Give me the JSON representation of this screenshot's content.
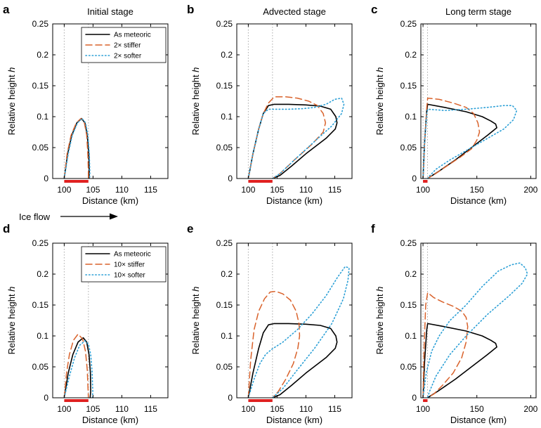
{
  "figure": {
    "flow_label": "Ice flow",
    "colors": {
      "meteoric": "#000000",
      "stiffer": "#d9622b",
      "softer": "#2a9fd6",
      "guide": "#aaaaaa",
      "bar": "#e02020"
    }
  },
  "chart_data": [
    {
      "panel": "a",
      "type": "line",
      "title": "Initial stage",
      "xlabel": "Distance (km)",
      "ylabel": "Relative height h",
      "xlim": [
        98,
        118
      ],
      "ylim": [
        0,
        0.25
      ],
      "xticks": [
        100,
        105,
        110,
        115
      ],
      "yticks": [
        0,
        0.05,
        0.1,
        0.15,
        0.2,
        0.25
      ],
      "guides_x": [
        100,
        104.2
      ],
      "bar_x": [
        100,
        104.2
      ],
      "legend": [
        "As meteoric",
        "2× stiffer",
        "2× softer"
      ],
      "series": [
        {
          "name": "As meteoric",
          "style": "solid",
          "x": [
            100.0,
            100.6,
            101.3,
            102.2,
            103.0,
            103.6,
            104.0,
            104.25,
            104.35,
            104.3
          ],
          "y": [
            0.0,
            0.04,
            0.07,
            0.09,
            0.097,
            0.09,
            0.07,
            0.04,
            0.01,
            0.0
          ]
        },
        {
          "name": "2× stiffer",
          "style": "dashed",
          "x": [
            100.0,
            100.5,
            101.2,
            102.1,
            102.9,
            103.5,
            103.9,
            104.1,
            104.2,
            104.2
          ],
          "y": [
            0.0,
            0.04,
            0.07,
            0.09,
            0.097,
            0.09,
            0.07,
            0.04,
            0.01,
            0.0
          ]
        },
        {
          "name": "2× softer",
          "style": "dotted",
          "x": [
            100.0,
            100.7,
            101.4,
            102.3,
            103.1,
            103.7,
            104.1,
            104.35,
            104.45,
            104.4
          ],
          "y": [
            0.0,
            0.04,
            0.07,
            0.09,
            0.097,
            0.09,
            0.07,
            0.04,
            0.01,
            0.0
          ]
        }
      ]
    },
    {
      "panel": "b",
      "type": "line",
      "title": "Advected stage",
      "xlabel": "Distance (km)",
      "ylabel": "Relative height h",
      "xlim": [
        98,
        118
      ],
      "ylim": [
        0,
        0.25
      ],
      "xticks": [
        100,
        105,
        110,
        115
      ],
      "yticks": [
        0,
        0.05,
        0.1,
        0.15,
        0.2,
        0.25
      ],
      "guides_x": [
        100,
        104.2
      ],
      "bar_x": [
        100,
        104.2
      ],
      "series": [
        {
          "name": "As meteoric",
          "style": "solid",
          "x": [
            100.0,
            100.8,
            101.8,
            102.6,
            103.5,
            104.5,
            107.0,
            110.0,
            112.5,
            114.3,
            115.2,
            115.4,
            115.1,
            113.5,
            110.0,
            107.5,
            105.5,
            104.2
          ],
          "y": [
            0.0,
            0.04,
            0.08,
            0.105,
            0.118,
            0.12,
            0.12,
            0.119,
            0.117,
            0.112,
            0.1,
            0.09,
            0.08,
            0.065,
            0.04,
            0.02,
            0.005,
            0.0
          ]
        },
        {
          "name": "2× stiffer",
          "style": "dashed",
          "x": [
            100.0,
            100.8,
            101.8,
            102.6,
            103.5,
            104.5,
            106.5,
            108.5,
            110.5,
            112.0,
            113.0,
            113.4,
            113.0,
            111.0,
            108.0,
            105.5,
            104.2
          ],
          "y": [
            0.0,
            0.04,
            0.08,
            0.105,
            0.122,
            0.132,
            0.132,
            0.13,
            0.125,
            0.118,
            0.105,
            0.09,
            0.075,
            0.055,
            0.03,
            0.008,
            0.0
          ]
        },
        {
          "name": "2× softer",
          "style": "dotted",
          "x": [
            100.0,
            100.8,
            101.8,
            102.6,
            103.5,
            104.5,
            107.0,
            109.5,
            111.5,
            113.5,
            115.0,
            116.2,
            116.6,
            116.2,
            114.5,
            111.5,
            108.0,
            105.5,
            104.2
          ],
          "y": [
            0.0,
            0.04,
            0.08,
            0.105,
            0.112,
            0.112,
            0.112,
            0.113,
            0.115,
            0.12,
            0.128,
            0.13,
            0.12,
            0.105,
            0.085,
            0.06,
            0.03,
            0.008,
            0.0
          ]
        }
      ]
    },
    {
      "panel": "c",
      "type": "line",
      "title": "Long term stage",
      "xlabel": "Distance (km)",
      "ylabel": "Relative height h",
      "xlim": [
        98,
        205
      ],
      "ylim": [
        0,
        0.25
      ],
      "xticks": [
        100,
        150,
        200
      ],
      "yticks": [
        0,
        0.05,
        0.1,
        0.15,
        0.2,
        0.25
      ],
      "guides_x": [
        100,
        104.2
      ],
      "bar_x": [
        100,
        104.2
      ],
      "series": [
        {
          "name": "As meteoric",
          "style": "solid",
          "x": [
            100.0,
            101.5,
            103.5,
            104.3,
            120.0,
            140.0,
            155.0,
            163.0,
            167.5,
            168.5,
            160.0,
            145.0,
            130.0,
            115.0,
            106.0,
            104.2
          ],
          "y": [
            0.0,
            0.06,
            0.11,
            0.12,
            0.115,
            0.108,
            0.1,
            0.093,
            0.088,
            0.082,
            0.07,
            0.05,
            0.03,
            0.012,
            0.002,
            0.0
          ]
        },
        {
          "name": "2× stiffer",
          "style": "dashed",
          "x": [
            100.0,
            101.5,
            103.5,
            104.3,
            115.0,
            128.0,
            140.0,
            147.0,
            151.0,
            152.5,
            150.0,
            145.0,
            135.0,
            122.0,
            110.0,
            105.0,
            104.2
          ],
          "y": [
            0.0,
            0.06,
            0.115,
            0.13,
            0.128,
            0.122,
            0.115,
            0.105,
            0.09,
            0.075,
            0.062,
            0.048,
            0.035,
            0.02,
            0.006,
            0.001,
            0.0
          ]
        },
        {
          "name": "2× softer",
          "style": "dotted",
          "x": [
            100.0,
            101.5,
            103.5,
            104.3,
            120.0,
            140.0,
            160.0,
            175.0,
            183.0,
            187.0,
            184.0,
            175.0,
            160.0,
            140.0,
            125.0,
            112.0,
            106.0,
            104.2
          ],
          "y": [
            0.0,
            0.06,
            0.105,
            0.112,
            0.11,
            0.112,
            0.115,
            0.118,
            0.118,
            0.11,
            0.095,
            0.08,
            0.065,
            0.045,
            0.03,
            0.015,
            0.004,
            0.0
          ]
        }
      ]
    },
    {
      "panel": "d",
      "type": "line",
      "title": "",
      "xlabel": "Distance (km)",
      "ylabel": "Relative height h",
      "xlim": [
        98,
        118
      ],
      "ylim": [
        0,
        0.25
      ],
      "xticks": [
        100,
        105,
        110,
        115
      ],
      "yticks": [
        0,
        0.05,
        0.1,
        0.15,
        0.2,
        0.25
      ],
      "guides_x": [
        100,
        104.2
      ],
      "bar_x": [
        100,
        104.2
      ],
      "legend": [
        "As meteoric",
        "10× stiffer",
        "10× softer"
      ],
      "series": [
        {
          "name": "As meteoric",
          "style": "solid",
          "x": [
            100.0,
            100.7,
            101.5,
            102.4,
            103.3,
            103.9,
            104.3,
            104.55,
            104.6,
            104.5
          ],
          "y": [
            0.0,
            0.04,
            0.07,
            0.09,
            0.097,
            0.09,
            0.07,
            0.04,
            0.01,
            0.0
          ]
        },
        {
          "name": "10× stiffer",
          "style": "dashed",
          "x": [
            100.0,
            100.4,
            100.9,
            101.6,
            102.4,
            103.2,
            103.7,
            104.0,
            104.15,
            104.2
          ],
          "y": [
            0.0,
            0.04,
            0.07,
            0.093,
            0.103,
            0.095,
            0.075,
            0.045,
            0.012,
            0.0
          ]
        },
        {
          "name": "10× softer",
          "style": "dotted",
          "x": [
            100.0,
            100.9,
            101.8,
            102.7,
            103.6,
            104.2,
            104.6,
            104.85,
            104.95,
            104.9
          ],
          "y": [
            0.0,
            0.035,
            0.065,
            0.085,
            0.092,
            0.087,
            0.07,
            0.04,
            0.01,
            0.0
          ]
        }
      ]
    },
    {
      "panel": "e",
      "type": "line",
      "title": "",
      "xlabel": "Distance (km)",
      "ylabel": "Relative height h",
      "xlim": [
        98,
        118
      ],
      "ylim": [
        0,
        0.25
      ],
      "xticks": [
        100,
        105,
        110,
        115
      ],
      "yticks": [
        0,
        0.05,
        0.1,
        0.15,
        0.2,
        0.25
      ],
      "guides_x": [
        100,
        104.2
      ],
      "bar_x": [
        100,
        104.2
      ],
      "series": [
        {
          "name": "As meteoric",
          "style": "solid",
          "x": [
            100.0,
            100.8,
            101.8,
            102.6,
            103.5,
            104.5,
            107.0,
            110.0,
            112.5,
            114.3,
            115.2,
            115.4,
            115.1,
            113.5,
            110.0,
            107.5,
            105.5,
            104.2
          ],
          "y": [
            0.0,
            0.04,
            0.08,
            0.105,
            0.118,
            0.12,
            0.12,
            0.119,
            0.117,
            0.112,
            0.1,
            0.09,
            0.08,
            0.065,
            0.04,
            0.02,
            0.005,
            0.0
          ]
        },
        {
          "name": "10× stiffer",
          "style": "dashed",
          "x": [
            100.0,
            100.4,
            101.0,
            101.8,
            102.8,
            103.8,
            104.8,
            106.0,
            107.3,
            108.3,
            108.8,
            108.9,
            108.6,
            107.8,
            106.5,
            105.2,
            104.2
          ],
          "y": [
            0.0,
            0.06,
            0.11,
            0.14,
            0.16,
            0.171,
            0.172,
            0.168,
            0.158,
            0.14,
            0.12,
            0.1,
            0.08,
            0.055,
            0.03,
            0.01,
            0.0
          ]
        },
        {
          "name": "10× softer",
          "style": "dotted",
          "x": [
            100.0,
            101.0,
            102.0,
            103.0,
            104.0,
            106.0,
            108.5,
            111.0,
            113.5,
            115.5,
            116.8,
            117.5,
            117.3,
            116.5,
            114.5,
            111.5,
            108.5,
            106.0,
            104.2
          ],
          "y": [
            0.0,
            0.03,
            0.055,
            0.07,
            0.078,
            0.09,
            0.11,
            0.135,
            0.165,
            0.195,
            0.212,
            0.21,
            0.19,
            0.16,
            0.12,
            0.08,
            0.045,
            0.015,
            0.0
          ]
        }
      ]
    },
    {
      "panel": "f",
      "type": "line",
      "title": "",
      "xlabel": "Distance (km)",
      "ylabel": "Relative height h",
      "xlim": [
        98,
        205
      ],
      "ylim": [
        0,
        0.25
      ],
      "xticks": [
        100,
        150,
        200
      ],
      "yticks": [
        0,
        0.05,
        0.1,
        0.15,
        0.2,
        0.25
      ],
      "guides_x": [
        100,
        104.2
      ],
      "bar_x": [
        100,
        104.2
      ],
      "series": [
        {
          "name": "As meteoric",
          "style": "solid",
          "x": [
            100.0,
            101.5,
            103.5,
            104.3,
            120.0,
            140.0,
            155.0,
            163.0,
            167.5,
            168.5,
            160.0,
            145.0,
            130.0,
            115.0,
            106.0,
            104.2
          ],
          "y": [
            0.0,
            0.06,
            0.11,
            0.12,
            0.115,
            0.108,
            0.1,
            0.093,
            0.088,
            0.082,
            0.07,
            0.05,
            0.03,
            0.012,
            0.002,
            0.0
          ]
        },
        {
          "name": "10× stiffer",
          "style": "dashed",
          "x": [
            100.0,
            101.0,
            102.5,
            104.3,
            110.0,
            118.0,
            128.0,
            136.0,
            140.0,
            141.5,
            140.0,
            136.0,
            128.0,
            118.0,
            110.0,
            105.0,
            104.2
          ],
          "y": [
            0.0,
            0.08,
            0.15,
            0.17,
            0.162,
            0.155,
            0.148,
            0.14,
            0.13,
            0.115,
            0.09,
            0.065,
            0.04,
            0.02,
            0.006,
            0.001,
            0.0
          ]
        },
        {
          "name": "10× softer",
          "style": "dotted",
          "x": [
            100.0,
            103.0,
            108.0,
            115.0,
            125.0,
            140.0,
            155.0,
            170.0,
            182.0,
            190.0,
            195.0,
            197.0,
            192.0,
            180.0,
            160.0,
            140.0,
            125.0,
            112.0,
            106.0,
            104.2
          ],
          "y": [
            0.0,
            0.04,
            0.075,
            0.1,
            0.125,
            0.15,
            0.18,
            0.205,
            0.215,
            0.218,
            0.21,
            0.2,
            0.185,
            0.165,
            0.135,
            0.1,
            0.07,
            0.035,
            0.01,
            0.0
          ]
        }
      ]
    }
  ]
}
